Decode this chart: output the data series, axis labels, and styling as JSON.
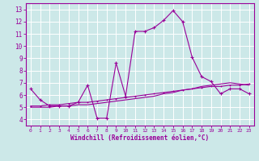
{
  "xlabel": "Windchill (Refroidissement éolien,°C)",
  "x_values": [
    0,
    1,
    2,
    3,
    4,
    5,
    6,
    7,
    8,
    9,
    10,
    11,
    12,
    13,
    14,
    15,
    16,
    17,
    18,
    19,
    20,
    21,
    22,
    23
  ],
  "line1_y": [
    6.5,
    5.6,
    5.1,
    5.1,
    5.1,
    5.4,
    6.8,
    4.1,
    4.1,
    8.6,
    5.9,
    11.2,
    11.2,
    11.5,
    12.1,
    12.9,
    12.0,
    9.1,
    7.5,
    7.1,
    6.1,
    6.5,
    6.5,
    6.1
  ],
  "line2_y": [
    5.1,
    5.1,
    5.2,
    5.2,
    5.3,
    5.4,
    5.4,
    5.5,
    5.6,
    5.7,
    5.8,
    5.9,
    6.0,
    6.1,
    6.2,
    6.3,
    6.4,
    6.5,
    6.6,
    6.7,
    6.7,
    6.8,
    6.8,
    6.9
  ],
  "line3_y": [
    5.0,
    5.0,
    5.0,
    5.1,
    5.1,
    5.2,
    5.2,
    5.3,
    5.4,
    5.5,
    5.6,
    5.7,
    5.8,
    5.9,
    6.1,
    6.2,
    6.4,
    6.5,
    6.7,
    6.8,
    6.9,
    7.0,
    6.9,
    6.8
  ],
  "line_color": "#990099",
  "bg_color": "#cce8e8",
  "grid_color": "#ffffff",
  "ylim": [
    3.5,
    13.5
  ],
  "yticks": [
    4,
    5,
    6,
    7,
    8,
    9,
    10,
    11,
    12,
    13
  ],
  "xticks": [
    0,
    1,
    2,
    3,
    4,
    5,
    6,
    7,
    8,
    9,
    10,
    11,
    12,
    13,
    14,
    15,
    16,
    17,
    18,
    19,
    20,
    21,
    22,
    23
  ],
  "marker": "+"
}
